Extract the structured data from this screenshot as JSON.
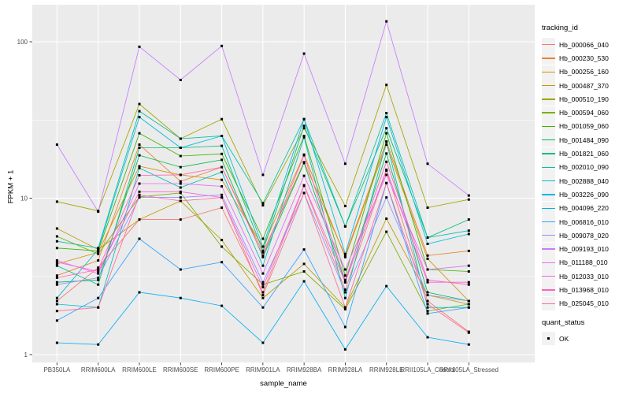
{
  "figure": {
    "background": "#FFFFFF",
    "panel_background": "#EBEBEB",
    "grid_color": "#FFFFFF",
    "tick_label_color": "#4D4D4D",
    "tick_mark_color": "#333333",
    "marker_color": "#000000"
  },
  "chart_data": {
    "type": "line",
    "title": "",
    "xlabel": "sample_name",
    "ylabel": "FPKM + 1",
    "y_scale": "log10",
    "y_ticks": [
      1,
      10,
      100
    ],
    "y_tick_labels": [
      "1",
      "10",
      "100"
    ],
    "y_minor_ticks": [
      3.162,
      31.623
    ],
    "ylim": [
      0.89,
      172
    ],
    "grid": true,
    "legend_position": "right",
    "legend_title": "tracking_id",
    "marker": "black-square",
    "x_categories": [
      "PB350LA",
      "RRIM600LA",
      "RRIM600LE",
      "RRIM600SE",
      "RRIM600PE",
      "RRIM901LA",
      "RRIM928BA",
      "RRIM928LA",
      "RRIM928LE",
      "RRII105LA_Control",
      "RRII105LA_Stressed"
    ],
    "series": [
      {
        "name": "Hb_000066_040",
        "color": "#F8766D",
        "values": [
          2.2,
          3.6,
          7.3,
          7.3,
          8.7,
          2.5,
          12.0,
          2.6,
          15.0,
          2.2,
          1.4
        ]
      },
      {
        "name": "Hb_000230_530",
        "color": "#EA8331",
        "values": [
          3.2,
          4.0,
          22.0,
          12.8,
          15.8,
          4.5,
          17.0,
          4.3,
          23.0,
          4.3,
          4.6
        ]
      },
      {
        "name": "Hb_000256_160",
        "color": "#D89000",
        "values": [
          3.8,
          4.5,
          16.0,
          14.1,
          13.1,
          4.9,
          19.0,
          4.2,
          22.0,
          4.1,
          2.2
        ]
      },
      {
        "name": "Hb_000487_370",
        "color": "#C09B00",
        "values": [
          6.4,
          4.7,
          7.3,
          9.6,
          5.4,
          2.3,
          3.8,
          2.0,
          7.4,
          2.4,
          2.1
        ]
      },
      {
        "name": "Hb_000510_190",
        "color": "#A3A500",
        "values": [
          9.5,
          8.3,
          40.0,
          24.0,
          32.0,
          9.0,
          28.0,
          8.9,
          53.0,
          8.7,
          9.8
        ]
      },
      {
        "name": "Hb_000594_060",
        "color": "#7CAE00",
        "values": [
          5.7,
          4.4,
          10.2,
          10.8,
          4.9,
          2.8,
          3.4,
          1.95,
          6.1,
          1.9,
          2.1
        ]
      },
      {
        "name": "Hb_001059_060",
        "color": "#39B600",
        "values": [
          4.8,
          4.6,
          26.0,
          18.6,
          19.2,
          5.5,
          25.0,
          3.2,
          26.0,
          3.5,
          3.4
        ]
      },
      {
        "name": "Hb_001484_090",
        "color": "#00BB4E",
        "values": [
          2.9,
          3.0,
          18.8,
          15.8,
          17.6,
          4.2,
          16.8,
          2.9,
          19.3,
          2.5,
          2.2
        ]
      },
      {
        "name": "Hb_001821_060",
        "color": "#00BF7D",
        "values": [
          3.7,
          2.8,
          21.0,
          21.0,
          21.6,
          4.6,
          29.0,
          6.6,
          28.0,
          5.6,
          7.3
        ]
      },
      {
        "name": "Hb_002010_090",
        "color": "#00C1A3",
        "values": [
          5.3,
          4.8,
          36.0,
          24.0,
          25.0,
          9.3,
          32.0,
          6.6,
          35.0,
          5.6,
          6.2
        ]
      },
      {
        "name": "Hb_002888_040",
        "color": "#00BFC4",
        "values": [
          2.1,
          2.0,
          15.6,
          11.7,
          14.7,
          3.7,
          24.5,
          2.3,
          23.0,
          2.0,
          2.0
        ]
      },
      {
        "name": "Hb_003226_090",
        "color": "#00BAE0",
        "values": [
          2.3,
          4.7,
          33.0,
          21.0,
          25.0,
          4.9,
          32.0,
          4.4,
          33.0,
          5.1,
          5.9
        ]
      },
      {
        "name": "Hb_004096_220",
        "color": "#00B0F6",
        "values": [
          1.19,
          1.16,
          2.5,
          2.3,
          2.05,
          1.19,
          2.94,
          1.08,
          2.74,
          1.29,
          1.16
        ]
      },
      {
        "name": "Hb_006816_010",
        "color": "#35A2FF",
        "values": [
          1.65,
          2.3,
          5.5,
          3.5,
          3.9,
          2.0,
          4.7,
          1.5,
          12.5,
          1.83,
          2.0
        ]
      },
      {
        "name": "Hb_009078_020",
        "color": "#9590FF",
        "values": [
          2.8,
          3.1,
          10.1,
          10.1,
          10.5,
          2.9,
          10.8,
          2.5,
          10.1,
          2.4,
          2.2
        ]
      },
      {
        "name": "Hb_009193_010",
        "color": "#C77CFF",
        "values": [
          22.0,
          8.2,
          93.0,
          57.0,
          94.0,
          14.1,
          84.0,
          16.6,
          135.0,
          16.6,
          10.4
        ]
      },
      {
        "name": "Hb_011188_010",
        "color": "#E76BF3",
        "values": [
          4.0,
          3.3,
          12.4,
          12.4,
          11.9,
          3.3,
          13.9,
          3.5,
          14.1,
          3.5,
          3.7
        ]
      },
      {
        "name": "Hb_012033_010",
        "color": "#FA62DB",
        "values": [
          3.9,
          3.4,
          11.0,
          11.0,
          10.1,
          2.7,
          12.1,
          2.9,
          15.2,
          2.9,
          2.9
        ]
      },
      {
        "name": "Hb_013968_010",
        "color": "#FF62BC",
        "values": [
          3.1,
          3.5,
          14.0,
          14.1,
          15.8,
          4.3,
          18.8,
          3.0,
          17.1,
          3.0,
          2.8
        ]
      },
      {
        "name": "Hb_025045_010",
        "color": "#FF6A98",
        "values": [
          1.9,
          2.0,
          10.5,
          9.6,
          10.1,
          2.4,
          10.8,
          2.0,
          12.5,
          2.1,
          1.38
        ]
      }
    ],
    "point_legend": {
      "title": "quant_status",
      "items": [
        {
          "label": "OK",
          "marker": "black-square",
          "color": "#000000"
        }
      ]
    }
  }
}
